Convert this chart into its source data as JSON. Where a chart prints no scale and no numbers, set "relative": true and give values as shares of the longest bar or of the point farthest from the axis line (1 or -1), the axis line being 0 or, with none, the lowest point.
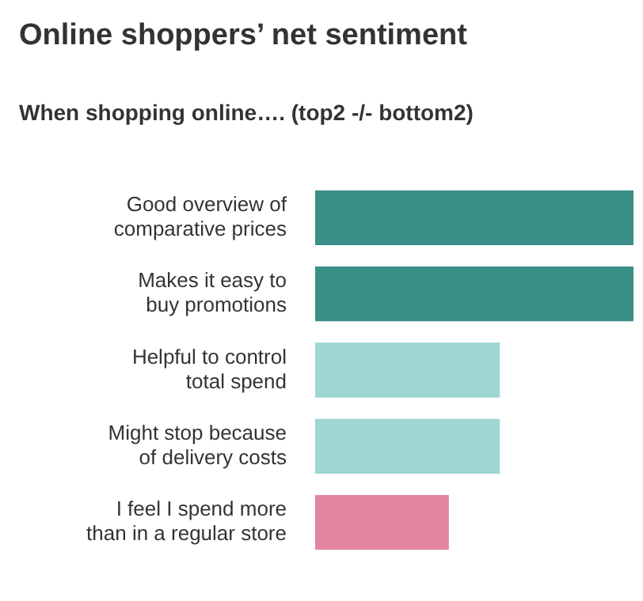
{
  "chart_data": {
    "type": "bar",
    "title": "Online shoppers’ net sentiment",
    "subtitle": "When shopping online…. (top2 -/- bottom2)",
    "orientation": "horizontal",
    "relative": true,
    "categories": [
      "Good overview of\ncomparative prices",
      "Makes it easy to\nbuy promotions",
      "Helpful to control\ntotal spend",
      "Might stop because\nof delivery costs",
      "I feel I spend more\nthan in a regular store"
    ],
    "values": [
      1,
      1,
      0.58,
      0.58,
      0.42
    ],
    "colors": [
      "#3a8f87",
      "#3a8f87",
      "#9dd6d3",
      "#9dd6d3",
      "#e286a0"
    ],
    "legend": false
  }
}
